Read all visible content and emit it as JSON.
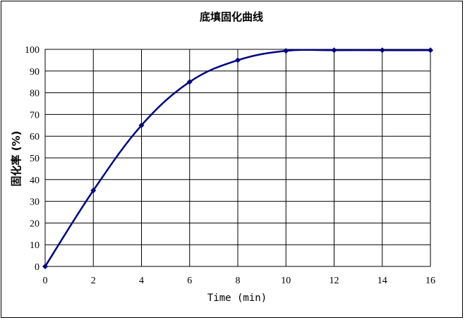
{
  "chart_data": {
    "type": "line",
    "title": "底填固化曲线",
    "xlabel": "Time (min)",
    "ylabel": "固化率 (%)",
    "xlim": [
      0,
      16
    ],
    "ylim": [
      0,
      100
    ],
    "xticks": [
      0,
      2,
      4,
      6,
      8,
      10,
      12,
      14,
      16
    ],
    "yticks": [
      0,
      10,
      20,
      30,
      40,
      50,
      60,
      70,
      80,
      90,
      100
    ],
    "grid": true,
    "legend": "none",
    "series": [
      {
        "x": [
          0,
          2,
          4,
          6,
          8,
          10,
          12,
          14,
          16
        ],
        "values": [
          0,
          35,
          65,
          85,
          95,
          99.3,
          99.6,
          99.6,
          99.6
        ],
        "color": "#000080",
        "marker": "diamond"
      }
    ]
  }
}
